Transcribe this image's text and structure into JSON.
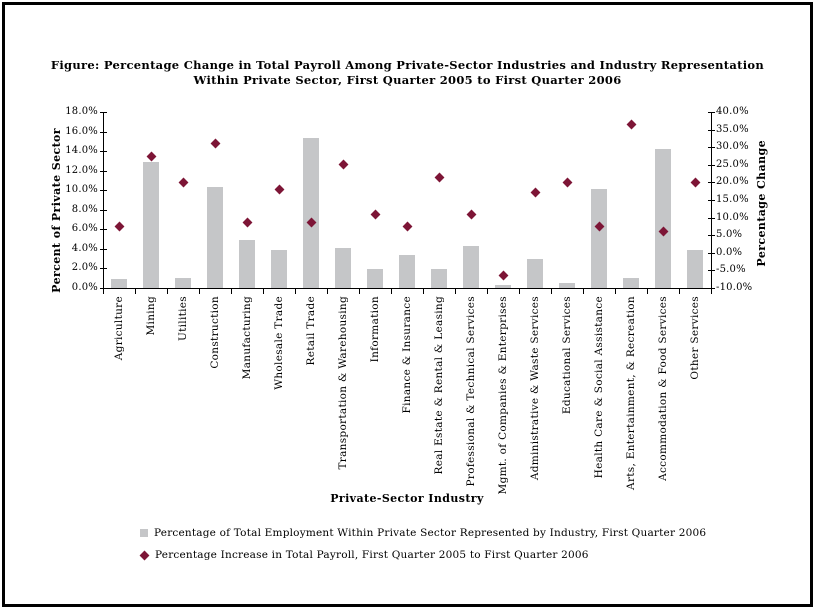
{
  "title": {
    "line1": "Figure: Percentage Change in Total Payroll Among Private-Sector Industries and Industry Representation",
    "line2": "Within Private Sector, First Quarter 2005 to First Quarter 2006"
  },
  "axes": {
    "left": {
      "title": "Percent of Private Sector",
      "ticks": [
        "18.0%",
        "16.0%",
        "14.0%",
        "12.0%",
        "10.0%",
        "8.0%",
        "6.0%",
        "4.0%",
        "2.0%",
        "0.0%"
      ]
    },
    "right": {
      "title": "Percentage Change",
      "ticks": [
        "40.0%",
        "35.0%",
        "30.0%",
        "25.0%",
        "20.0%",
        "15.0%",
        "10.0%",
        "5.0%",
        "0.0%",
        "-5.0%",
        "-10.0%"
      ]
    },
    "x": {
      "title": "Private-Sector Industry"
    }
  },
  "legend": [
    {
      "marker": "bar-swatch-icon",
      "label": "Percentage of Total Employment Within Private Sector Represented by Industry, First Quarter 2006"
    },
    {
      "marker": "diamond-icon",
      "label": "Percentage Increase in Total Payroll, First Quarter 2005 to First Quarter 2006"
    }
  ],
  "colors": {
    "bar": "#C5C6C8",
    "diamond": "#7D1536",
    "axis": "#000000",
    "background": "#FFFFFF",
    "text": "#000000"
  },
  "chart_data": {
    "type": "bar",
    "subtype": "combo bar + scatter, dual y-axis",
    "title": "Figure: Percentage Change in Total Payroll Among Private-Sector Industries and Industry Representation Within Private Sector, First Quarter 2005 to First Quarter 2006",
    "xlabel": "Private-Sector Industry",
    "categories": [
      "Agriculture",
      "Mining",
      "Utilities",
      "Construction",
      "Manufacturing",
      "Wholesale Trade",
      "Retail Trade",
      "Transportation & Warehousing",
      "Information",
      "Finance & Insurance",
      "Real Estate & Rental & Leasing",
      "Professional & Technical Services",
      "Mgmt. of Companies & Enterprises",
      "Administrative & Waste Services",
      "Educational Services",
      "Health Care & Social Assistance",
      "Arts, Entertainment, & Recreation",
      "Accommodation & Food Services",
      "Other Services"
    ],
    "series": [
      {
        "name": "Percentage of Total Employment Within Private Sector Represented by Industry, First Quarter 2006",
        "type": "bar",
        "axis": "left",
        "ylabel": "Percent of Private Sector",
        "values": [
          0.9,
          12.9,
          1.0,
          10.3,
          4.9,
          3.9,
          15.3,
          4.1,
          1.9,
          3.4,
          1.9,
          4.3,
          0.3,
          3.0,
          0.5,
          10.1,
          1.0,
          14.2,
          3.9
        ]
      },
      {
        "name": "Percentage Increase in Total Payroll, First Quarter 2005 to First Quarter 2006",
        "type": "scatter",
        "axis": "right",
        "ylabel": "Percentage Change",
        "values": [
          7.5,
          27.5,
          20.0,
          31.0,
          8.5,
          18.0,
          8.5,
          25.0,
          11.0,
          7.5,
          21.5,
          11.0,
          -6.5,
          17.0,
          20.0,
          7.5,
          36.5,
          6.0,
          20.0
        ]
      }
    ],
    "left_ylim": [
      0,
      18
    ],
    "right_ylim": [
      -10,
      40
    ],
    "grid": false,
    "legend_position": "bottom-left"
  }
}
